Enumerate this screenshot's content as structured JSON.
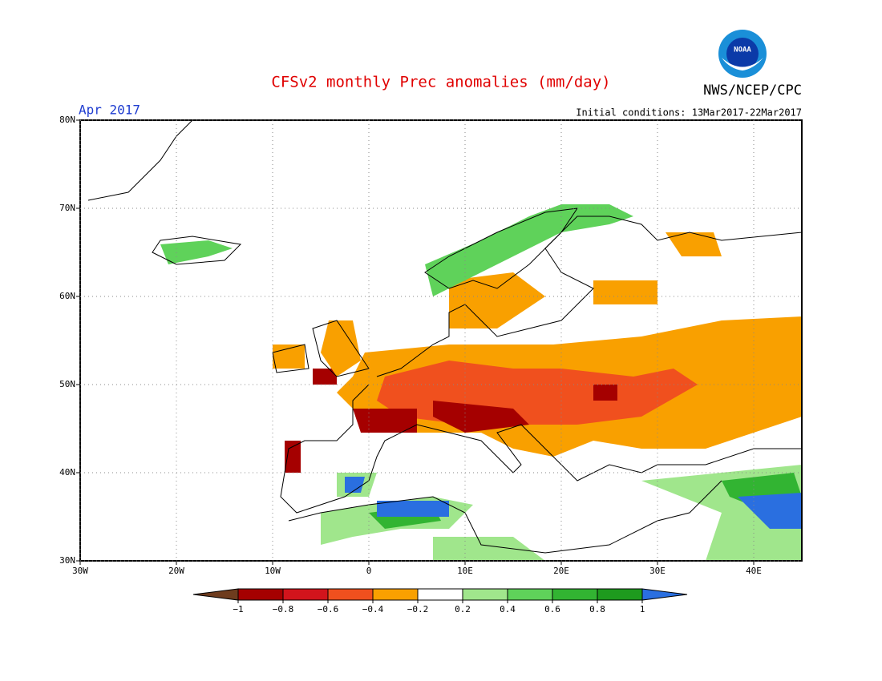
{
  "header": {
    "title": "CFSv2 monthly Prec anomalies (mm/day)",
    "agency": "NWS/NCEP/CPC",
    "logo_text": "NOAA",
    "month": "Apr 2017",
    "initial_conditions": "Initial conditions: 13Mar2017-22Mar2017"
  },
  "map": {
    "lonlim": [
      -30,
      45
    ],
    "latlim": [
      30,
      80
    ],
    "lonticks": [
      {
        "value": -30,
        "label": "30W"
      },
      {
        "value": -20,
        "label": "20W"
      },
      {
        "value": -10,
        "label": "10W"
      },
      0,
      {
        "value": 10,
        "label": "10E"
      },
      {
        "value": 20,
        "label": "20E"
      },
      {
        "value": 30,
        "label": "30E"
      },
      {
        "value": 40,
        "label": "40E"
      }
    ],
    "latticks": [
      {
        "value": 80,
        "label": "80N"
      },
      {
        "value": 70,
        "label": "70N"
      },
      {
        "value": 60,
        "label": "60N"
      },
      {
        "value": 50,
        "label": "50N"
      },
      {
        "value": 40,
        "label": "40N"
      },
      {
        "value": 30,
        "label": "30N"
      }
    ],
    "grid": true
  },
  "colorbar": {
    "bounds": [
      {
        "value": -1,
        "label": "−1"
      },
      {
        "value": -0.8,
        "label": "−0.8"
      },
      {
        "value": -0.6,
        "label": "−0.6"
      },
      {
        "value": -0.4,
        "label": "−0.4"
      },
      {
        "value": -0.2,
        "label": "−0.2"
      },
      0.2,
      0.4,
      0.6,
      0.8,
      1
    ],
    "colors": [
      "#6e3c1e",
      "#a50000",
      "#d2141c",
      "#f0501e",
      "#f9a000",
      "#ffffff",
      "#a0e68c",
      "#5fd25a",
      "#32b432",
      "#1e9b1e",
      "#2a6fe0"
    ]
  }
}
